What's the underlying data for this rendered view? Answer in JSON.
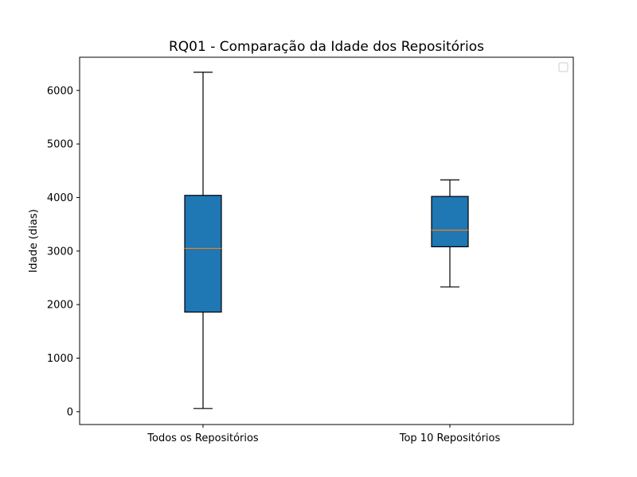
{
  "chart_data": {
    "type": "boxplot",
    "title": "RQ01 - Comparação da Idade dos Repositórios",
    "xlabel": "",
    "ylabel": "Idade (dias)",
    "ylim": [
      -240,
      6620
    ],
    "yticks": [
      0,
      1000,
      2000,
      3000,
      4000,
      5000,
      6000
    ],
    "grid": false,
    "legend": {
      "placement": "top-right",
      "entries": []
    },
    "categories": [
      "Todos os Repositórios",
      "Top 10 Repositórios"
    ],
    "boxes": [
      {
        "category": "Todos os Repositórios",
        "whisker_low": 60,
        "q1": 1860,
        "median": 3050,
        "q3": 4040,
        "whisker_high": 6340
      },
      {
        "category": "Top 10 Repositórios",
        "whisker_low": 2330,
        "q1": 3080,
        "median": 3390,
        "q3": 4020,
        "whisker_high": 4330
      }
    ],
    "colors": {
      "box_fill": "#1f77b4",
      "median": "#ff7f0e",
      "edge": "#000000"
    }
  }
}
